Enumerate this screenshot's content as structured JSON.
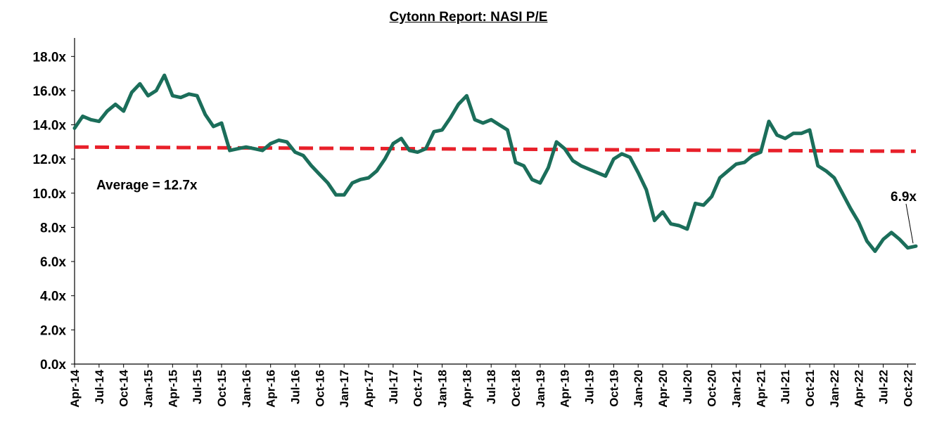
{
  "chart_data": {
    "type": "line",
    "title": "Cytonn Report: NASI P/E",
    "xlabel": "",
    "ylabel": "",
    "ylim": [
      0,
      19
    ],
    "yticks": [
      "0.0x",
      "2.0x",
      "4.0x",
      "6.0x",
      "8.0x",
      "10.0x",
      "12.0x",
      "14.0x",
      "16.0x",
      "18.0x"
    ],
    "ytick_values": [
      0,
      2,
      4,
      6,
      8,
      10,
      12,
      14,
      16,
      18
    ],
    "xticks": [
      "Apr-14",
      "Jul-14",
      "Oct-14",
      "Jan-15",
      "Apr-15",
      "Jul-15",
      "Oct-15",
      "Jan-16",
      "Apr-16",
      "Jul-16",
      "Oct-16",
      "Jan-17",
      "Apr-17",
      "Jul-17",
      "Oct-17",
      "Jan-18",
      "Apr-18",
      "Jul-18",
      "Oct-18",
      "Jan-19",
      "Apr-19",
      "Jul-19",
      "Oct-19",
      "Jan-20",
      "Apr-20",
      "Jul-20",
      "Oct-20",
      "Jan-21",
      "Apr-21",
      "Jul-21",
      "Oct-21",
      "Jan-22",
      "Apr-22",
      "Jul-22",
      "Oct-22"
    ],
    "grid": false,
    "series": [
      {
        "color": "#1b6e5a",
        "x": [
          "Apr-14",
          "May-14",
          "Jun-14",
          "Jul-14",
          "Aug-14",
          "Sep-14",
          "Oct-14",
          "Nov-14",
          "Dec-14",
          "Jan-15",
          "Feb-15",
          "Mar-15",
          "Apr-15",
          "May-15",
          "Jun-15",
          "Jul-15",
          "Aug-15",
          "Sep-15",
          "Oct-15",
          "Nov-15",
          "Dec-15",
          "Jan-16",
          "Feb-16",
          "Mar-16",
          "Apr-16",
          "May-16",
          "Jun-16",
          "Jul-16",
          "Aug-16",
          "Sep-16",
          "Oct-16",
          "Nov-16",
          "Dec-16",
          "Jan-17",
          "Feb-17",
          "Mar-17",
          "Apr-17",
          "May-17",
          "Jun-17",
          "Jul-17",
          "Aug-17",
          "Sep-17",
          "Oct-17",
          "Nov-17",
          "Dec-17",
          "Jan-18",
          "Feb-18",
          "Mar-18",
          "Apr-18",
          "May-18",
          "Jun-18",
          "Jul-18",
          "Aug-18",
          "Sep-18",
          "Oct-18",
          "Nov-18",
          "Dec-18",
          "Jan-19",
          "Feb-19",
          "Mar-19",
          "Apr-19",
          "May-19",
          "Jun-19",
          "Jul-19",
          "Aug-19",
          "Sep-19",
          "Oct-19",
          "Nov-19",
          "Dec-19",
          "Jan-20",
          "Feb-20",
          "Mar-20",
          "Apr-20",
          "May-20",
          "Jun-20",
          "Jul-20",
          "Aug-20",
          "Sep-20",
          "Oct-20",
          "Nov-20",
          "Dec-20",
          "Jan-21",
          "Feb-21",
          "Mar-21",
          "Apr-21",
          "May-21",
          "Jun-21",
          "Jul-21",
          "Aug-21",
          "Sep-21",
          "Oct-21",
          "Nov-21",
          "Dec-21",
          "Jan-22",
          "Feb-22",
          "Mar-22",
          "Apr-22",
          "May-22",
          "Jun-22",
          "Jul-22",
          "Aug-22",
          "Sep-22",
          "Oct-22",
          "Nov-22"
        ],
        "values": [
          13.8,
          14.5,
          14.3,
          14.2,
          14.8,
          15.2,
          14.8,
          15.9,
          16.4,
          15.7,
          16.0,
          16.9,
          15.7,
          15.6,
          15.8,
          15.7,
          14.6,
          13.9,
          14.1,
          12.5,
          12.6,
          12.7,
          12.6,
          12.5,
          12.9,
          13.1,
          13.0,
          12.4,
          12.2,
          11.6,
          11.1,
          10.6,
          9.9,
          9.9,
          10.6,
          10.8,
          10.9,
          11.3,
          12.0,
          12.9,
          13.2,
          12.5,
          12.4,
          12.6,
          13.6,
          13.7,
          14.4,
          15.2,
          15.7,
          14.3,
          14.1,
          14.3,
          14.0,
          13.7,
          11.8,
          11.6,
          10.8,
          10.6,
          11.5,
          13.0,
          12.6,
          11.9,
          11.6,
          11.4,
          11.2,
          11.0,
          12.0,
          12.3,
          12.1,
          11.2,
          10.2,
          8.4,
          8.9,
          8.2,
          8.1,
          7.9,
          9.4,
          9.3,
          9.8,
          10.9,
          11.3,
          11.7,
          11.8,
          12.2,
          12.4,
          14.2,
          13.4,
          13.2,
          13.5,
          13.5,
          13.7,
          11.6,
          11.3,
          10.9,
          10.0,
          9.1,
          8.3,
          7.2,
          6.6,
          7.3,
          7.7,
          7.3,
          6.8,
          6.9
        ]
      }
    ],
    "average": {
      "value": 12.7,
      "label": "Average = 12.7x",
      "color": "#e8202a"
    },
    "annotation": {
      "label": "6.9x"
    }
  }
}
